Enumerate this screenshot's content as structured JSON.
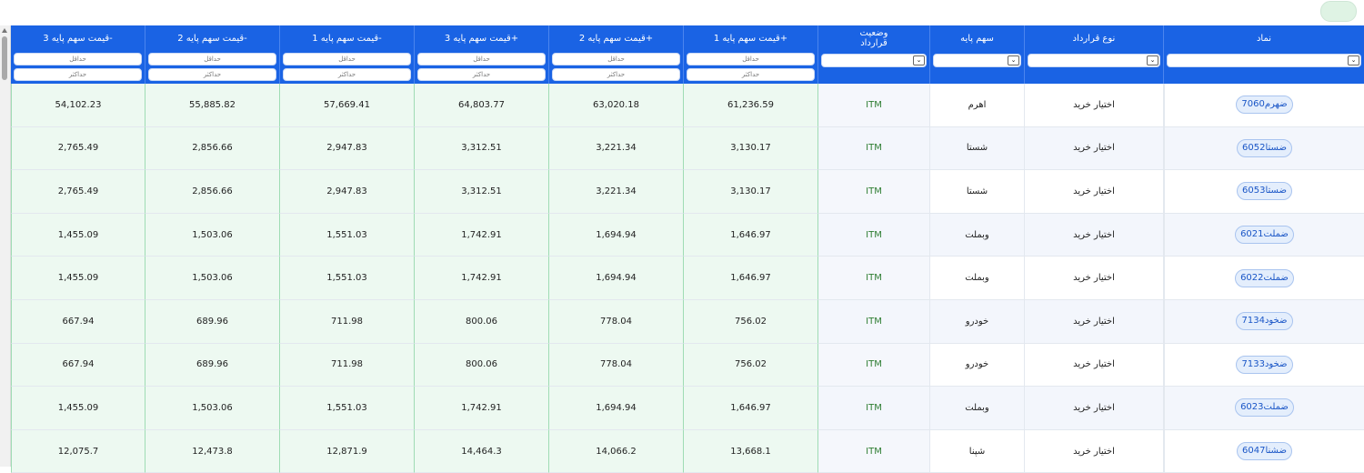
{
  "top_button_label": "",
  "columns": [
    {
      "key": "p_minus3",
      "label": "قیمت سهم پایه 3-",
      "filter": "range"
    },
    {
      "key": "p_minus2",
      "label": "قیمت سهم پایه 2-",
      "filter": "range"
    },
    {
      "key": "p_minus1",
      "label": "قیمت سهم پایه 1-",
      "filter": "range"
    },
    {
      "key": "p_plus3",
      "label": "قیمت سهم پایه 3+",
      "filter": "range"
    },
    {
      "key": "p_plus2",
      "label": "قیمت سهم پایه 2+",
      "filter": "range"
    },
    {
      "key": "p_plus1",
      "label": "قیمت سهم پایه 1+",
      "filter": "range"
    },
    {
      "key": "status",
      "label": "وضعیت\nقرارداد",
      "filter": "select"
    },
    {
      "key": "base",
      "label": "سهم پایه",
      "filter": "select"
    },
    {
      "key": "ctype",
      "label": "نوع قرارداد",
      "filter": "select"
    },
    {
      "key": "symbol",
      "label": "نماد",
      "filter": "select"
    }
  ],
  "filter_placeholders": {
    "min": "حداقل",
    "max": "حداکثر"
  },
  "rows": [
    {
      "symbol": "ضهرم7060",
      "ctype": "اختیار خرید",
      "base": "اهرم",
      "status": "ITM",
      "p_plus1": "61,236.59",
      "p_plus2": "63,020.18",
      "p_plus3": "64,803.77",
      "p_minus1": "57,669.41",
      "p_minus2": "55,885.82",
      "p_minus3": "54,102.23"
    },
    {
      "symbol": "ضستا6052",
      "ctype": "اختیار خرید",
      "base": "شستا",
      "status": "ITM",
      "p_plus1": "3,130.17",
      "p_plus2": "3,221.34",
      "p_plus3": "3,312.51",
      "p_minus1": "2,947.83",
      "p_minus2": "2,856.66",
      "p_minus3": "2,765.49"
    },
    {
      "symbol": "ضستا6053",
      "ctype": "اختیار خرید",
      "base": "شستا",
      "status": "ITM",
      "p_plus1": "3,130.17",
      "p_plus2": "3,221.34",
      "p_plus3": "3,312.51",
      "p_minus1": "2,947.83",
      "p_minus2": "2,856.66",
      "p_minus3": "2,765.49"
    },
    {
      "symbol": "ضملت6021",
      "ctype": "اختیار خرید",
      "base": "وبملت",
      "status": "ITM",
      "p_plus1": "1,646.97",
      "p_plus2": "1,694.94",
      "p_plus3": "1,742.91",
      "p_minus1": "1,551.03",
      "p_minus2": "1,503.06",
      "p_minus3": "1,455.09"
    },
    {
      "symbol": "ضملت6022",
      "ctype": "اختیار خرید",
      "base": "وبملت",
      "status": "ITM",
      "p_plus1": "1,646.97",
      "p_plus2": "1,694.94",
      "p_plus3": "1,742.91",
      "p_minus1": "1,551.03",
      "p_minus2": "1,503.06",
      "p_minus3": "1,455.09"
    },
    {
      "symbol": "ضخود7134",
      "ctype": "اختیار خرید",
      "base": "خودرو",
      "status": "ITM",
      "p_plus1": "756.02",
      "p_plus2": "778.04",
      "p_plus3": "800.06",
      "p_minus1": "711.98",
      "p_minus2": "689.96",
      "p_minus3": "667.94"
    },
    {
      "symbol": "ضخود7133",
      "ctype": "اختیار خرید",
      "base": "خودرو",
      "status": "ITM",
      "p_plus1": "756.02",
      "p_plus2": "778.04",
      "p_plus3": "800.06",
      "p_minus1": "711.98",
      "p_minus2": "689.96",
      "p_minus3": "667.94"
    },
    {
      "symbol": "ضملت6023",
      "ctype": "اختیار خرید",
      "base": "وبملت",
      "status": "ITM",
      "p_plus1": "1,646.97",
      "p_plus2": "1,694.94",
      "p_plus3": "1,742.91",
      "p_minus1": "1,551.03",
      "p_minus2": "1,503.06",
      "p_minus3": "1,455.09"
    },
    {
      "symbol": "ضشنا6047",
      "ctype": "اختیار خرید",
      "base": "شپنا",
      "status": "ITM",
      "p_plus1": "13,668.1",
      "p_plus2": "14,066.2",
      "p_plus3": "14,464.3",
      "p_minus1": "12,871.9",
      "p_minus2": "12,473.8",
      "p_minus3": "12,075.7"
    }
  ]
}
